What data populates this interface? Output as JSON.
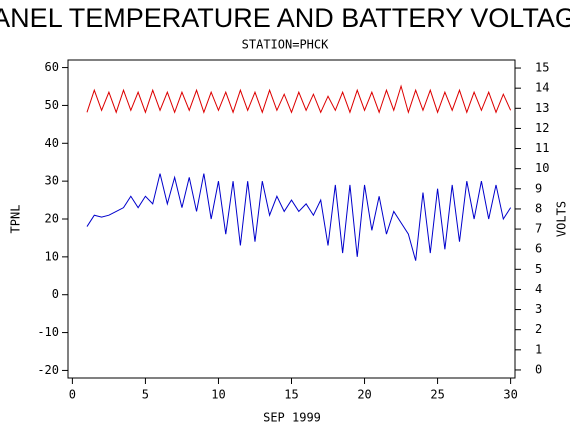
{
  "chart_data": {
    "type": "line",
    "title": "PANEL TEMPERATURE AND BATTERY VOLTAGE",
    "subtitle": "STATION=PHCK",
    "x_label": "SEP 1999",
    "y_label": "TPNL",
    "y2_label": "VOLTS",
    "x": [
      1,
      1.5,
      2,
      2.5,
      3,
      3.5,
      4,
      4.5,
      5,
      5.5,
      6,
      6.5,
      7,
      7.5,
      8,
      8.5,
      9,
      9.5,
      10,
      10.5,
      11,
      11.5,
      12,
      12.5,
      13,
      13.5,
      14,
      14.5,
      15,
      15.5,
      16,
      16.5,
      17,
      17.5,
      18,
      18.5,
      19,
      19.5,
      20,
      20.5,
      21,
      21.5,
      22,
      22.5,
      23,
      23.5,
      24,
      24.5,
      25,
      25.5,
      26,
      26.5,
      27,
      27.5,
      28,
      28.5,
      29,
      29.5,
      30
    ],
    "series": [
      {
        "name": "TPNL",
        "color": "#0000cc",
        "axis": "y",
        "values": [
          18,
          21,
          20.5,
          21,
          22,
          23,
          26,
          23,
          26,
          24,
          32,
          24,
          31,
          23,
          31,
          22,
          32,
          20,
          30,
          16,
          30,
          13,
          30,
          14,
          30,
          21,
          26,
          22,
          25,
          22,
          24,
          21,
          25,
          13,
          29,
          11,
          29,
          10,
          29,
          17,
          26,
          16,
          22,
          19,
          16,
          9,
          27,
          11,
          28,
          12,
          29,
          14,
          30,
          20,
          30,
          20,
          29,
          20,
          23
        ]
      },
      {
        "name": "VOLTS",
        "color": "#dd0000",
        "axis": "y2",
        "values": [
          12.8,
          13.9,
          12.9,
          13.8,
          12.8,
          13.9,
          12.9,
          13.8,
          12.8,
          13.9,
          12.9,
          13.8,
          12.8,
          13.8,
          12.9,
          13.9,
          12.8,
          13.8,
          12.9,
          13.8,
          12.8,
          13.9,
          12.9,
          13.8,
          12.8,
          13.9,
          12.9,
          13.7,
          12.8,
          13.8,
          12.9,
          13.7,
          12.8,
          13.6,
          12.9,
          13.8,
          12.8,
          13.9,
          12.9,
          13.8,
          12.8,
          13.9,
          12.9,
          14.1,
          12.8,
          13.9,
          12.9,
          13.9,
          12.8,
          13.8,
          12.9,
          13.9,
          12.8,
          13.8,
          12.9,
          13.8,
          12.8,
          13.7,
          12.9
        ]
      }
    ],
    "xlim": [
      -0.3,
      30.3
    ],
    "xticks": [
      0,
      5,
      10,
      15,
      20,
      25,
      30
    ],
    "ylim": [
      -22,
      62
    ],
    "yticks": [
      -20,
      -10,
      0,
      10,
      20,
      30,
      40,
      50,
      60
    ],
    "y2lim": [
      -0.4,
      15.4
    ],
    "y2ticks": [
      0,
      1,
      2,
      3,
      4,
      5,
      6,
      7,
      8,
      9,
      10,
      11,
      12,
      13,
      14,
      15
    ],
    "grid": false
  }
}
